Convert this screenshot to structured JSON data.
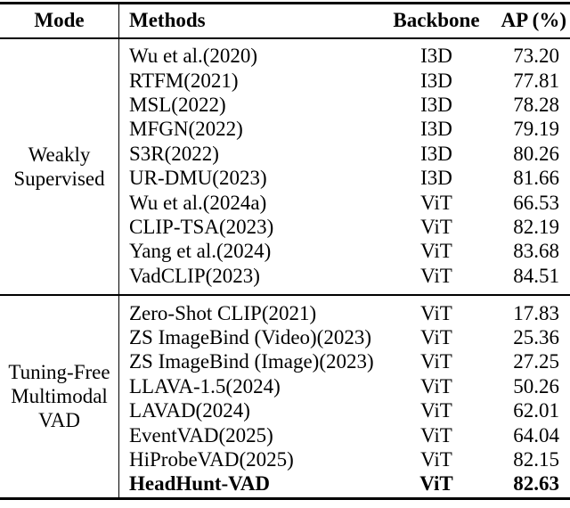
{
  "colors": {
    "text": "#000000",
    "background": "#ffffff",
    "rule": "#000000"
  },
  "table": {
    "headers": {
      "mode": "Mode",
      "methods": "Methods",
      "backbone": "Backbone",
      "ap": "AP (%)"
    },
    "groups": [
      {
        "mode_lines": [
          "Weakly",
          "Supervised"
        ],
        "rows": [
          {
            "method": "Wu et al.(2020)",
            "backbone": "I3D",
            "ap": "73.20",
            "bold": false
          },
          {
            "method": "RTFM(2021)",
            "backbone": "I3D",
            "ap": "77.81",
            "bold": false
          },
          {
            "method": "MSL(2022)",
            "backbone": "I3D",
            "ap": "78.28",
            "bold": false
          },
          {
            "method": "MFGN(2022)",
            "backbone": "I3D",
            "ap": "79.19",
            "bold": false
          },
          {
            "method": "S3R(2022)",
            "backbone": "I3D",
            "ap": "80.26",
            "bold": false
          },
          {
            "method": "UR-DMU(2023)",
            "backbone": "I3D",
            "ap": "81.66",
            "bold": false
          },
          {
            "method": "Wu et al.(2024a)",
            "backbone": "ViT",
            "ap": "66.53",
            "bold": false
          },
          {
            "method": "CLIP-TSA(2023)",
            "backbone": "ViT",
            "ap": "82.19",
            "bold": false
          },
          {
            "method": "Yang et al.(2024)",
            "backbone": "ViT",
            "ap": "83.68",
            "bold": false
          },
          {
            "method": "VadCLIP(2023)",
            "backbone": "ViT",
            "ap": "84.51",
            "bold": false
          }
        ]
      },
      {
        "mode_lines": [
          "Tuning-Free",
          "Multimodal",
          "VAD"
        ],
        "rows": [
          {
            "method": "Zero-Shot CLIP(2021)",
            "backbone": "ViT",
            "ap": "17.83",
            "bold": false
          },
          {
            "method": "ZS ImageBind (Video)(2023)",
            "backbone": "ViT",
            "ap": "25.36",
            "bold": false
          },
          {
            "method": "ZS ImageBind (Image)(2023)",
            "backbone": "ViT",
            "ap": "27.25",
            "bold": false
          },
          {
            "method": "LLAVA-1.5(2024)",
            "backbone": "ViT",
            "ap": "50.26",
            "bold": false
          },
          {
            "method": "LAVAD(2024)",
            "backbone": "ViT",
            "ap": "62.01",
            "bold": false
          },
          {
            "method": "EventVAD(2025)",
            "backbone": "ViT",
            "ap": "64.04",
            "bold": false
          },
          {
            "method": "HiProbeVAD(2025)",
            "backbone": "ViT",
            "ap": "82.15",
            "bold": false
          },
          {
            "method": "HeadHunt-VAD",
            "backbone": "ViT",
            "ap": "82.63",
            "bold": true
          }
        ]
      }
    ]
  }
}
